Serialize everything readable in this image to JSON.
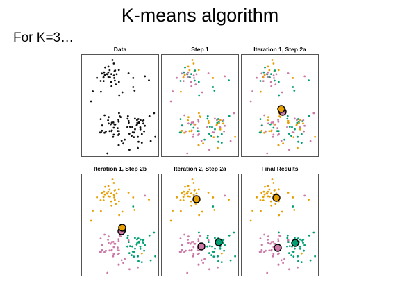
{
  "slide": {
    "title": "K-means algorithm",
    "subtitle": "For K=3…"
  },
  "colors": {
    "unassigned": "#111111",
    "cluster_1": "#e69f00",
    "cluster_2": "#cc79a7",
    "cluster_3": "#009e73"
  },
  "panels": [
    {
      "title": "Data"
    },
    {
      "title": "Step 1"
    },
    {
      "title": "Iteration 1, Step 2a"
    },
    {
      "title": "Iteration 1, Step 2b"
    },
    {
      "title": "Iteration 2, Step 2a"
    },
    {
      "title": "Final Results"
    }
  ]
}
